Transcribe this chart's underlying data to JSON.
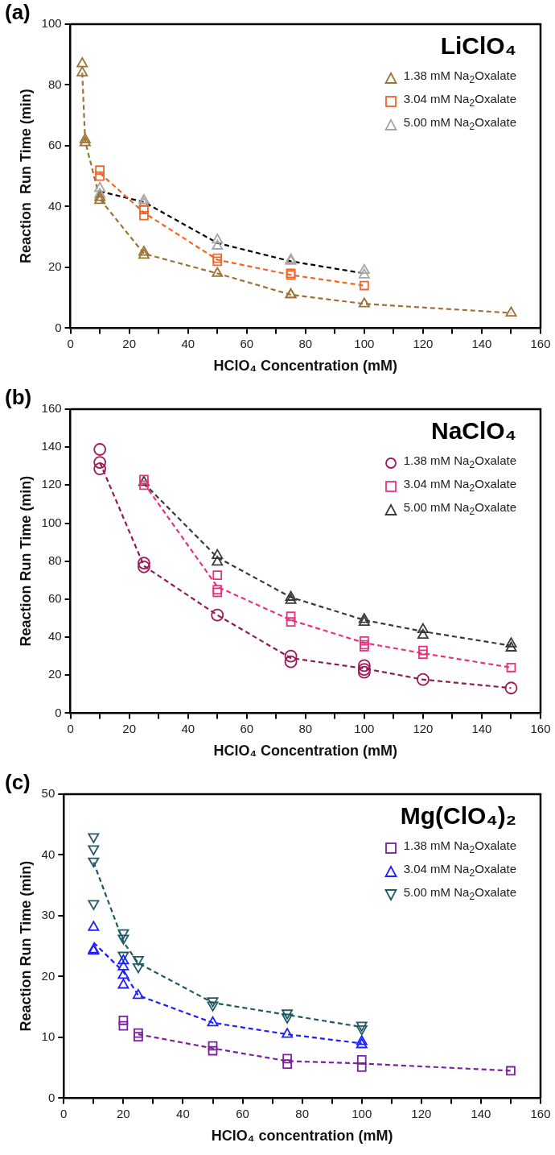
{
  "chart_data": [
    {
      "type": "scatter",
      "title": "LiClO₄",
      "xlabel": "HClO₄ Concentration (mM)",
      "ylabel": "Reaction  Run Time (min)",
      "annotations": [
        "(a)"
      ],
      "xlim": [
        0,
        160
      ],
      "ylim": [
        0,
        100
      ],
      "xticks": [
        0,
        {
          "value": 10,
          "label": null
        },
        20,
        {
          "value": 30,
          "label": null
        },
        40,
        {
          "value": 50,
          "label": null
        },
        60,
        {
          "value": 70,
          "label": null
        },
        80,
        {
          "value": 90,
          "label": null
        },
        100,
        {
          "value": 110,
          "label": null
        },
        120,
        {
          "value": 130,
          "label": null
        },
        140,
        {
          "value": 150,
          "label": null
        },
        160
      ],
      "yticks": [
        0,
        20,
        40,
        60,
        80,
        100
      ],
      "legend": "top right",
      "grid": false,
      "series": [
        {
          "type": "line",
          "color": "#9c7236",
          "line_style": "dashed",
          "marker": "none",
          "x": [
            4,
            5,
            10,
            25,
            50,
            75,
            100,
            150
          ],
          "values": [
            84,
            61.5,
            42.5,
            24.5,
            18,
            11,
            8,
            5
          ]
        },
        {
          "type": "line",
          "color": "#f26522",
          "line_style": "dashed",
          "marker": "none",
          "x": [
            10,
            25,
            50,
            75,
            100
          ],
          "values": [
            51,
            38,
            22.5,
            17.5,
            14
          ]
        },
        {
          "type": "line",
          "color": "#000000",
          "line_style": "dashed",
          "marker": "none",
          "x": [
            10,
            25,
            50,
            75,
            100
          ],
          "values": [
            45,
            41.5,
            28,
            22,
            18
          ]
        },
        {
          "name": "1.38 mM Na$_{2}$Oxalate",
          "color": "#9c7236",
          "marker": "triangle",
          "x": [
            4,
            4,
            5,
            5,
            10,
            10,
            25,
            25,
            50,
            75,
            75,
            100,
            150
          ],
          "values": [
            87,
            84,
            62,
            61,
            43,
            42,
            25,
            24,
            18,
            11,
            11,
            8,
            5
          ]
        },
        {
          "name": "3.04 mM Na$_{2}$Oxalate",
          "color": "#f26522",
          "marker": "square",
          "x": [
            10,
            10,
            25,
            25,
            50,
            50,
            75,
            75,
            100
          ],
          "values": [
            52,
            50,
            39,
            37,
            23,
            22,
            18,
            17.5,
            14
          ]
        },
        {
          "name": "5.00 mM Na$_{2}$Oxalate",
          "color": "#a6a6a6",
          "marker": "triangle",
          "x": [
            10,
            10,
            25,
            25,
            50,
            50,
            75,
            75,
            100,
            100
          ],
          "values": [
            46,
            44,
            42,
            41,
            29,
            27,
            22.5,
            22,
            19,
            17.5
          ]
        }
      ]
    },
    {
      "type": "scatter",
      "title": "NaClO₄",
      "xlabel": "HClO₄ Concentration (mM)",
      "ylabel": "Reaction Run Time (min)",
      "annotations": [
        "(b)"
      ],
      "xlim": [
        0,
        160
      ],
      "ylim": [
        0,
        160
      ],
      "xticks": [
        0,
        {
          "value": 10,
          "label": null
        },
        20,
        {
          "value": 30,
          "label": null
        },
        40,
        {
          "value": 50,
          "label": null
        },
        60,
        {
          "value": 70,
          "label": null
        },
        80,
        {
          "value": 90,
          "label": null
        },
        100,
        {
          "value": 110,
          "label": null
        },
        120,
        {
          "value": 130,
          "label": null
        },
        140,
        {
          "value": 150,
          "label": null
        },
        160
      ],
      "yticks": [
        0,
        20,
        40,
        60,
        80,
        100,
        120,
        140,
        160
      ],
      "legend": "top right",
      "grid": false,
      "series": [
        {
          "type": "line",
          "color": "#8c1d4e",
          "line_style": "dashed",
          "marker": "none",
          "x": [
            10,
            25,
            50,
            75,
            100,
            120,
            150
          ],
          "values": [
            132,
            77.5,
            51.6,
            29,
            23.5,
            17.7,
            13.2
          ]
        },
        {
          "type": "line",
          "color": "#e8327f",
          "line_style": "dashed",
          "marker": "none",
          "x": [
            25,
            50,
            75,
            100,
            120,
            150
          ],
          "values": [
            121,
            66.5,
            49,
            37,
            31.5,
            24
          ]
        },
        {
          "type": "line",
          "color": "#3a3a3a",
          "line_style": "dashed",
          "marker": "none",
          "x": [
            25,
            50,
            75,
            100,
            120,
            150
          ],
          "values": [
            121,
            82,
            61,
            49,
            43,
            35.5
          ]
        },
        {
          "name": "1.38 mM Na$_{2}$Oxalate",
          "color": "#a0185c",
          "marker": "circle",
          "x": [
            10,
            10,
            10,
            25,
            25,
            50,
            75,
            75,
            100,
            100,
            100,
            120,
            150
          ],
          "values": [
            138.8,
            132,
            128.6,
            79,
            77,
            51.6,
            30,
            27,
            25,
            23,
            21.5,
            17.7,
            13.2
          ]
        },
        {
          "name": "3.04 mM Na$_{2}$Oxalate",
          "color": "#e8327f",
          "marker": "square",
          "x": [
            25,
            25,
            50,
            50,
            50,
            75,
            75,
            100,
            100,
            100,
            120,
            120,
            150
          ],
          "values": [
            123,
            120,
            72.6,
            65,
            63.6,
            51,
            48,
            38,
            36,
            35,
            33,
            31,
            24
          ]
        },
        {
          "name": "5.00 mM Na$_{2}$Oxalate",
          "color": "#3a3a3a",
          "marker": "triangle",
          "x": [
            25,
            50,
            50,
            75,
            75,
            100,
            100,
            120,
            120,
            150,
            150
          ],
          "values": [
            121.5,
            83,
            79.5,
            61,
            59.4,
            49.3,
            47.8,
            44,
            41,
            36.5,
            34.3
          ]
        }
      ]
    },
    {
      "type": "scatter",
      "title": "Mg(ClO₄)₂",
      "xlabel": "HClO₄ concentration (mM)",
      "ylabel": "Reaction Run Time (min)",
      "annotations": [
        "(c)"
      ],
      "xlim": [
        0,
        160
      ],
      "ylim": [
        0,
        50
      ],
      "xticks": [
        0,
        {
          "value": 10,
          "label": null
        },
        20,
        {
          "value": 30,
          "label": null
        },
        40,
        {
          "value": 50,
          "label": null
        },
        60,
        {
          "value": 70,
          "label": null
        },
        80,
        {
          "value": 90,
          "label": null
        },
        100,
        {
          "value": 110,
          "label": null
        },
        120,
        {
          "value": 130,
          "label": null
        },
        140,
        {
          "value": 150,
          "label": null
        },
        160
      ],
      "yticks": [
        0,
        10,
        20,
        30,
        40,
        50
      ],
      "legend": "top right",
      "grid": false,
      "series": [
        {
          "type": "line",
          "color": "#7b1fa2",
          "line_style": "dashed",
          "marker": "none",
          "x": [
            25,
            50,
            75,
            100,
            150
          ],
          "values": [
            10.5,
            8.2,
            6.1,
            5.7,
            4.5
          ]
        },
        {
          "type": "line",
          "color": "#1f1fff",
          "line_style": "dashed",
          "marker": "none",
          "x": [
            10,
            20,
            25,
            50,
            75,
            100
          ],
          "values": [
            25.6,
            20.8,
            16.9,
            12.4,
            10.5,
            9
          ]
        },
        {
          "type": "line",
          "color": "#1f5a64",
          "line_style": "dashed",
          "marker": "none",
          "x": [
            10,
            20,
            25,
            50,
            75,
            100
          ],
          "values": [
            38.8,
            25.7,
            22.2,
            15.7,
            13.7,
            11.7
          ]
        },
        {
          "name": "1.38 mM Na$_{2}$Oxalate",
          "color": "#7b1fa2",
          "marker": "square",
          "x": [
            20,
            20,
            25,
            25,
            50,
            50,
            75,
            75,
            100,
            100,
            150
          ],
          "values": [
            12.8,
            11.9,
            10.7,
            10.1,
            8.6,
            7.8,
            6.5,
            5.6,
            6.3,
            5.1,
            4.5
          ]
        },
        {
          "name": "3.04 mM Na$_{2}$Oxalate",
          "color": "#1f1fff",
          "marker": "triangle",
          "x": [
            10,
            10,
            10,
            20,
            20,
            20,
            20,
            25,
            50,
            75,
            100,
            100
          ],
          "values": [
            28.1,
            24.4,
            24.2,
            22.6,
            21.6,
            20.2,
            18.6,
            16.9,
            12.4,
            10.5,
            9.3,
            8.8
          ]
        },
        {
          "name": "5.00 mM Na$_{2}$Oxalate",
          "color": "#1f5a64",
          "marker": "triangle-down",
          "x": [
            10,
            10,
            10,
            10,
            20,
            20,
            20,
            25,
            25,
            50,
            50,
            75,
            75,
            100,
            100
          ],
          "values": [
            43,
            41,
            39,
            32,
            27.2,
            26.3,
            23.5,
            22.8,
            21.6,
            16,
            15.3,
            14,
            13.3,
            12,
            11.4
          ]
        }
      ]
    }
  ]
}
